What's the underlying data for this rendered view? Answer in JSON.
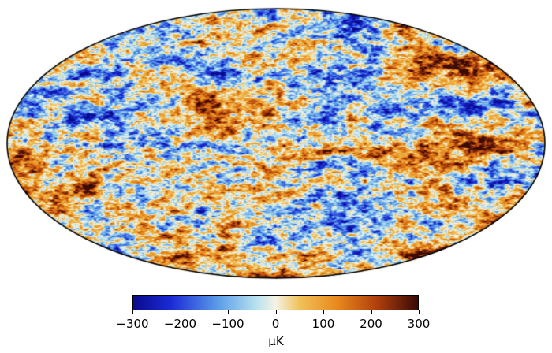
{
  "sky_map": {
    "projection": "mollweide",
    "colors": {
      "cold": "#1b2bd6",
      "cool": "#6aa3e8",
      "mid": "#e8f0ee",
      "warm": "#e8a84a",
      "hot": "#b2420c",
      "extreme": "#4a0d06",
      "outline": "#000000"
    }
  },
  "colorbar": {
    "min": -300,
    "max": 300,
    "ticks": [
      "−300",
      "−200",
      "−100",
      "0",
      "100",
      "200",
      "300"
    ],
    "tick_values": [
      -300,
      -200,
      -100,
      0,
      100,
      200,
      300
    ],
    "unit": "μK",
    "stops": [
      {
        "value": -300,
        "color": "#0a0a8c"
      },
      {
        "value": -220,
        "color": "#1b2bd6"
      },
      {
        "value": -120,
        "color": "#5c9ee8"
      },
      {
        "value": -40,
        "color": "#b8e2ee"
      },
      {
        "value": 0,
        "color": "#f5f2e6"
      },
      {
        "value": 50,
        "color": "#f0c25a"
      },
      {
        "value": 130,
        "color": "#e8891c"
      },
      {
        "value": 210,
        "color": "#b2420c"
      },
      {
        "value": 300,
        "color": "#3a0a05"
      }
    ]
  }
}
